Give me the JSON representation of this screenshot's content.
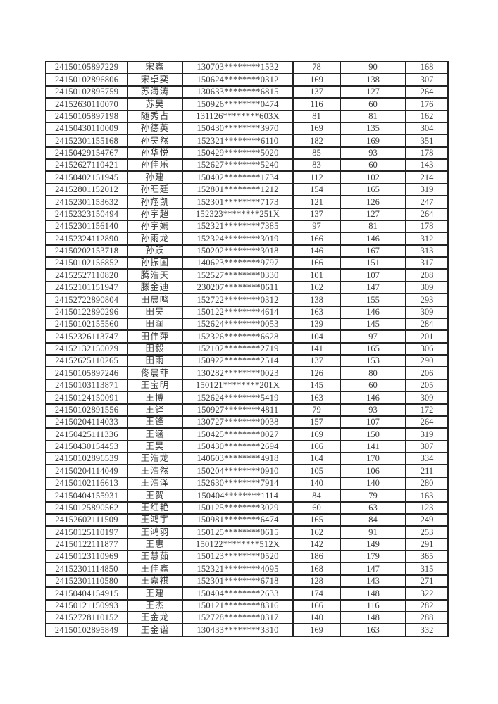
{
  "colors": {
    "border": "#242424",
    "text": "#3b3b3b",
    "background": "#ffffff"
  },
  "table": {
    "column_names": [
      "exam-number-cell",
      "name-cell",
      "id-number-cell",
      "score1-cell",
      "score2-cell",
      "total-score-cell"
    ],
    "column_classes": [
      "col-exam",
      "col-name",
      "col-id",
      "col-score1",
      "col-score2",
      "col-total"
    ],
    "rows": [
      [
        "24150105897229",
        "宋鑫",
        "130703********1532",
        "78",
        "90",
        "168"
      ],
      [
        "24150102896806",
        "宋卓奕",
        "150624********0312",
        "169",
        "138",
        "307"
      ],
      [
        "24150102895759",
        "苏海涛",
        "130633********6815",
        "137",
        "127",
        "264"
      ],
      [
        "24152630110070",
        "苏昊",
        "150926********0474",
        "116",
        "60",
        "176"
      ],
      [
        "24150105897198",
        "随秀占",
        "131126********603X",
        "81",
        "81",
        "162"
      ],
      [
        "24150430110009",
        "孙德英",
        "150430********3970",
        "169",
        "135",
        "304"
      ],
      [
        "24152301155168",
        "孙昊然",
        "152321********6110",
        "182",
        "169",
        "351"
      ],
      [
        "24150429154767",
        "孙华悦",
        "150429********5020",
        "85",
        "93",
        "178"
      ],
      [
        "24152627110421",
        "孙佳乐",
        "152627********5240",
        "83",
        "60",
        "143"
      ],
      [
        "24150402151945",
        "孙建",
        "150402********1734",
        "112",
        "102",
        "214"
      ],
      [
        "24152801152012",
        "孙旺廷",
        "152801********1212",
        "154",
        "165",
        "319"
      ],
      [
        "24152301153632",
        "孙翔凯",
        "152301********7173",
        "121",
        "126",
        "247"
      ],
      [
        "24152323150494",
        "孙宇超",
        "152323********251X",
        "137",
        "127",
        "264"
      ],
      [
        "24152301156140",
        "孙宇嫣",
        "152321********7385",
        "97",
        "81",
        "178"
      ],
      [
        "24152324112890",
        "孙雨龙",
        "152324********3019",
        "166",
        "146",
        "312"
      ],
      [
        "24150202153718",
        "孙跃",
        "150202********3018",
        "146",
        "167",
        "313"
      ],
      [
        "24150102156852",
        "孙振国",
        "140623********9797",
        "166",
        "151",
        "317"
      ],
      [
        "24152527110820",
        "腾浩天",
        "152527********0330",
        "101",
        "107",
        "208"
      ],
      [
        "24152101151947",
        "滕金迪",
        "230207********0611",
        "162",
        "147",
        "309"
      ],
      [
        "24152722890804",
        "田晨鸣",
        "152722********0312",
        "138",
        "155",
        "293"
      ],
      [
        "24150122890296",
        "田昊",
        "150122********4614",
        "163",
        "146",
        "309"
      ],
      [
        "24150102155560",
        "田润",
        "152624********0053",
        "139",
        "145",
        "284"
      ],
      [
        "24152326113747",
        "田伟萍",
        "152326********6628",
        "104",
        "97",
        "201"
      ],
      [
        "24152132150029",
        "田毅",
        "152102********2719",
        "141",
        "165",
        "306"
      ],
      [
        "24152625110265",
        "田雨",
        "150922********2514",
        "137",
        "153",
        "290"
      ],
      [
        "24150105897246",
        "佟晨菲",
        "130282********0023",
        "126",
        "80",
        "206"
      ],
      [
        "24150103113871",
        "王宝明",
        "150121********201X",
        "145",
        "60",
        "205"
      ],
      [
        "24150124150091",
        "王博",
        "152624********5419",
        "163",
        "146",
        "309"
      ],
      [
        "24150102891556",
        "王铎",
        "150927********4811",
        "79",
        "93",
        "172"
      ],
      [
        "24150204114033",
        "王锋",
        "130727********0038",
        "157",
        "107",
        "264"
      ],
      [
        "24150425111336",
        "王涵",
        "150425********0027",
        "169",
        "150",
        "319"
      ],
      [
        "24150430154453",
        "王昊",
        "150430********2694",
        "166",
        "141",
        "307"
      ],
      [
        "24150102896539",
        "王浩龙",
        "140603********4918",
        "164",
        "170",
        "334"
      ],
      [
        "24150204114049",
        "王浩然",
        "150204********0910",
        "105",
        "106",
        "211"
      ],
      [
        "24150102116613",
        "王浩泽",
        "152630********7914",
        "140",
        "140",
        "280"
      ],
      [
        "24150404155931",
        "王贺",
        "150404********1114",
        "84",
        "79",
        "163"
      ],
      [
        "24150125890562",
        "王红艳",
        "150125********3029",
        "60",
        "63",
        "123"
      ],
      [
        "24152602111509",
        "王鸿宇",
        "150981********6474",
        "165",
        "84",
        "249"
      ],
      [
        "24150125110197",
        "王鸿羽",
        "150125********0615",
        "162",
        "91",
        "253"
      ],
      [
        "24150122111877",
        "王惠",
        "150122********512X",
        "142",
        "149",
        "291"
      ],
      [
        "24150123110969",
        "王慧茹",
        "150123********0520",
        "186",
        "179",
        "365"
      ],
      [
        "24152301114850",
        "王佳鑫",
        "152321********4095",
        "168",
        "147",
        "315"
      ],
      [
        "24152301110580",
        "王嘉祺",
        "152301********6718",
        "128",
        "143",
        "271"
      ],
      [
        "24150404154915",
        "王建",
        "150404********2633",
        "174",
        "148",
        "322"
      ],
      [
        "24150121150993",
        "王杰",
        "150121********8316",
        "166",
        "116",
        "282"
      ],
      [
        "24152728110152",
        "王金龙",
        "152728********0317",
        "140",
        "148",
        "288"
      ],
      [
        "24150102895849",
        "王金谱",
        "130433********3310",
        "169",
        "163",
        "332"
      ]
    ]
  }
}
